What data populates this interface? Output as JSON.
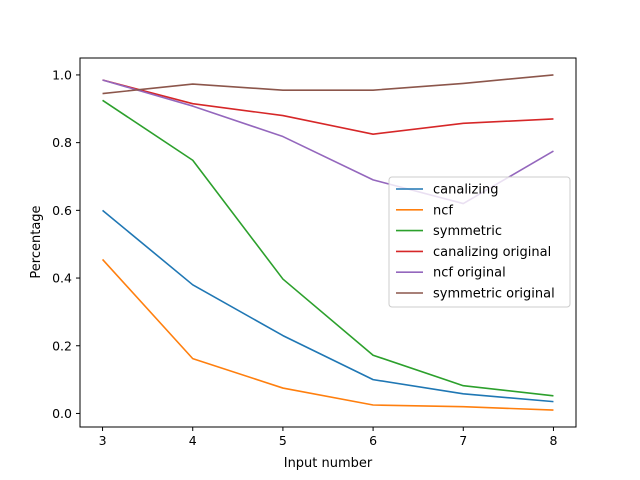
{
  "chart_data": {
    "type": "line",
    "title": "",
    "xlabel": "Input number",
    "ylabel": "Percentage",
    "x": [
      3,
      4,
      5,
      6,
      7,
      8
    ],
    "xlim": [
      2.75,
      8.25
    ],
    "ylim": [
      -0.04,
      1.05
    ],
    "xticks": [
      "3",
      "4",
      "5",
      "6",
      "7",
      "8"
    ],
    "yticks": [
      "0.0",
      "0.2",
      "0.4",
      "0.6",
      "0.8",
      "1.0"
    ],
    "grid": false,
    "legend_position": "center-right",
    "series": [
      {
        "name": "canalizing",
        "color": "#1f77b4",
        "values": [
          0.6,
          0.38,
          0.23,
          0.1,
          0.058,
          0.035
        ]
      },
      {
        "name": "ncf",
        "color": "#ff7f0e",
        "values": [
          0.455,
          0.162,
          0.075,
          0.025,
          0.02,
          0.01
        ]
      },
      {
        "name": "symmetric",
        "color": "#2ca02c",
        "values": [
          0.925,
          0.748,
          0.397,
          0.172,
          0.082,
          0.052
        ]
      },
      {
        "name": "canalizing original",
        "color": "#d62728",
        "values": [
          0.985,
          0.915,
          0.88,
          0.825,
          0.857,
          0.87
        ]
      },
      {
        "name": "ncf original",
        "color": "#9467bd",
        "values": [
          0.985,
          0.908,
          0.818,
          0.69,
          0.62,
          0.775
        ]
      },
      {
        "name": "symmetric original",
        "color": "#8c564b",
        "values": [
          0.945,
          0.973,
          0.955,
          0.955,
          0.975,
          1.0
        ]
      }
    ]
  }
}
